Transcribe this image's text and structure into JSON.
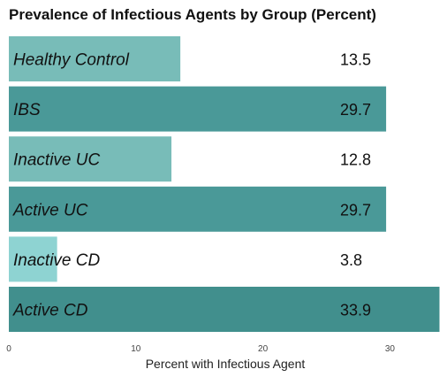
{
  "chart_data": {
    "type": "bar",
    "orientation": "horizontal",
    "title": "Prevalence of Infectious Agents by Group (Percent)",
    "xlabel": "Percent with Infectious Agent",
    "ylabel": "",
    "xlim": [
      0,
      34
    ],
    "xticks": [
      0,
      10,
      20,
      30
    ],
    "grid": false,
    "legend": "none",
    "categories": [
      "Healthy Control",
      "IBS",
      "Inactive UC",
      "Active UC",
      "Inactive CD",
      "Active CD"
    ],
    "values": [
      13.5,
      29.7,
      12.8,
      29.7,
      3.8,
      33.9
    ],
    "value_labels": [
      "13.5",
      "29.7",
      "12.8",
      "29.7",
      "3.8",
      "33.9"
    ],
    "colors": [
      "#78bcb8",
      "#4a9998",
      "#78bcb8",
      "#4a9998",
      "#8ed3d2",
      "#418f8d"
    ]
  }
}
